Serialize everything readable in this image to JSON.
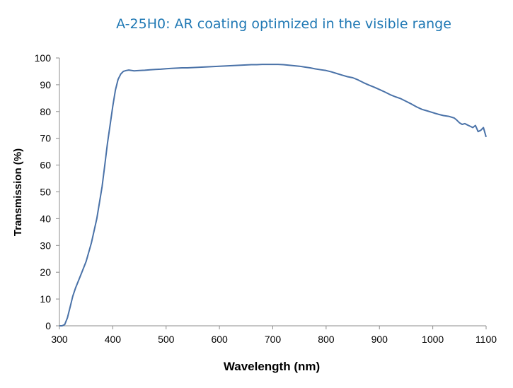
{
  "chart_data": {
    "type": "line",
    "title": "A-25H0: AR coating optimized in the visible range",
    "xlabel": "Wavelength (nm)",
    "ylabel": "Transmission (%)",
    "xlim": [
      300,
      1100
    ],
    "ylim": [
      0,
      100
    ],
    "xticks": [
      "300",
      "400",
      "500",
      "600",
      "700",
      "800",
      "900",
      "1000",
      "1100"
    ],
    "yticks": [
      "0",
      "10",
      "20",
      "30",
      "40",
      "50",
      "60",
      "70",
      "80",
      "90",
      "100"
    ],
    "grid": false,
    "legend": "none",
    "colors": {
      "line": "#4a72a8",
      "title": "#1f78b4",
      "axis": "#8c8c8c"
    },
    "series": [
      {
        "x": [
          300,
          305,
          310,
          315,
          320,
          325,
          330,
          340,
          350,
          360,
          370,
          380,
          385,
          390,
          395,
          400,
          405,
          410,
          415,
          420,
          425,
          430,
          440,
          450,
          460,
          470,
          480,
          490,
          500,
          510,
          520,
          530,
          540,
          550,
          560,
          570,
          580,
          590,
          600,
          610,
          620,
          630,
          640,
          650,
          660,
          670,
          680,
          690,
          700,
          710,
          720,
          730,
          740,
          750,
          760,
          770,
          780,
          790,
          800,
          810,
          820,
          830,
          840,
          850,
          860,
          870,
          880,
          890,
          900,
          910,
          920,
          930,
          940,
          950,
          960,
          970,
          980,
          990,
          1000,
          1005,
          1010,
          1020,
          1030,
          1040,
          1045,
          1050,
          1055,
          1060,
          1065,
          1070,
          1075,
          1080,
          1085,
          1090,
          1095,
          1100
        ],
        "values": [
          0,
          0,
          0.5,
          3,
          7,
          11,
          14,
          19,
          24,
          31,
          40,
          52,
          60,
          68,
          75,
          82,
          88,
          92,
          94,
          95,
          95.3,
          95.5,
          95.2,
          95.3,
          95.4,
          95.6,
          95.7,
          95.8,
          96,
          96.1,
          96.2,
          96.3,
          96.3,
          96.4,
          96.5,
          96.6,
          96.7,
          96.8,
          96.9,
          97,
          97.1,
          97.2,
          97.3,
          97.4,
          97.5,
          97.5,
          97.6,
          97.6,
          97.6,
          97.6,
          97.5,
          97.3,
          97.1,
          96.9,
          96.6,
          96.3,
          95.9,
          95.6,
          95.3,
          94.8,
          94.2,
          93.6,
          93,
          92.6,
          91.8,
          90.8,
          89.9,
          89.1,
          88.2,
          87.3,
          86.3,
          85.5,
          84.8,
          83.8,
          82.8,
          81.7,
          80.8,
          80.2,
          79.6,
          79.3,
          79,
          78.5,
          78.2,
          77.6,
          76.8,
          75.8,
          75.2,
          75.5,
          75,
          74.5,
          74,
          74.8,
          72.5,
          73,
          74,
          70.5
        ]
      }
    ]
  }
}
